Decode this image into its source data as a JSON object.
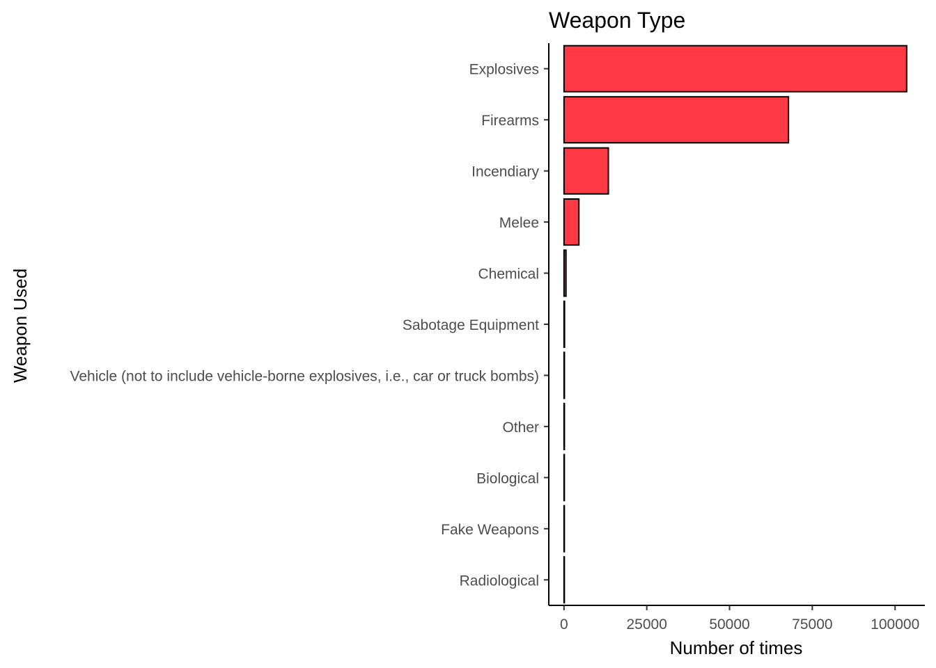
{
  "chart_data": {
    "type": "bar",
    "orientation": "horizontal",
    "title": "Weapon Type",
    "xlabel": "Number of times",
    "ylabel": "Weapon Used",
    "categories": [
      "Explosives",
      "Firearms",
      "Incendiary",
      "Melee",
      "Chemical",
      "Sabotage Equipment",
      "Vehicle (not to include vehicle-borne explosives, i.e., car or truck bombs)",
      "Other",
      "Biological",
      "Fake Weapons",
      "Radiological"
    ],
    "values": [
      103500,
      67800,
      13400,
      4500,
      600,
      160,
      130,
      120,
      35,
      33,
      14
    ],
    "xlim": [
      -4600,
      109000
    ],
    "xticks": [
      0,
      25000,
      50000,
      75000,
      100000
    ],
    "xtick_labels": [
      "0",
      "25000",
      "50000",
      "75000",
      "100000"
    ],
    "bar_color": "#FF3A44",
    "bar_outline": "#000000",
    "grid": false,
    "legend": "none"
  }
}
